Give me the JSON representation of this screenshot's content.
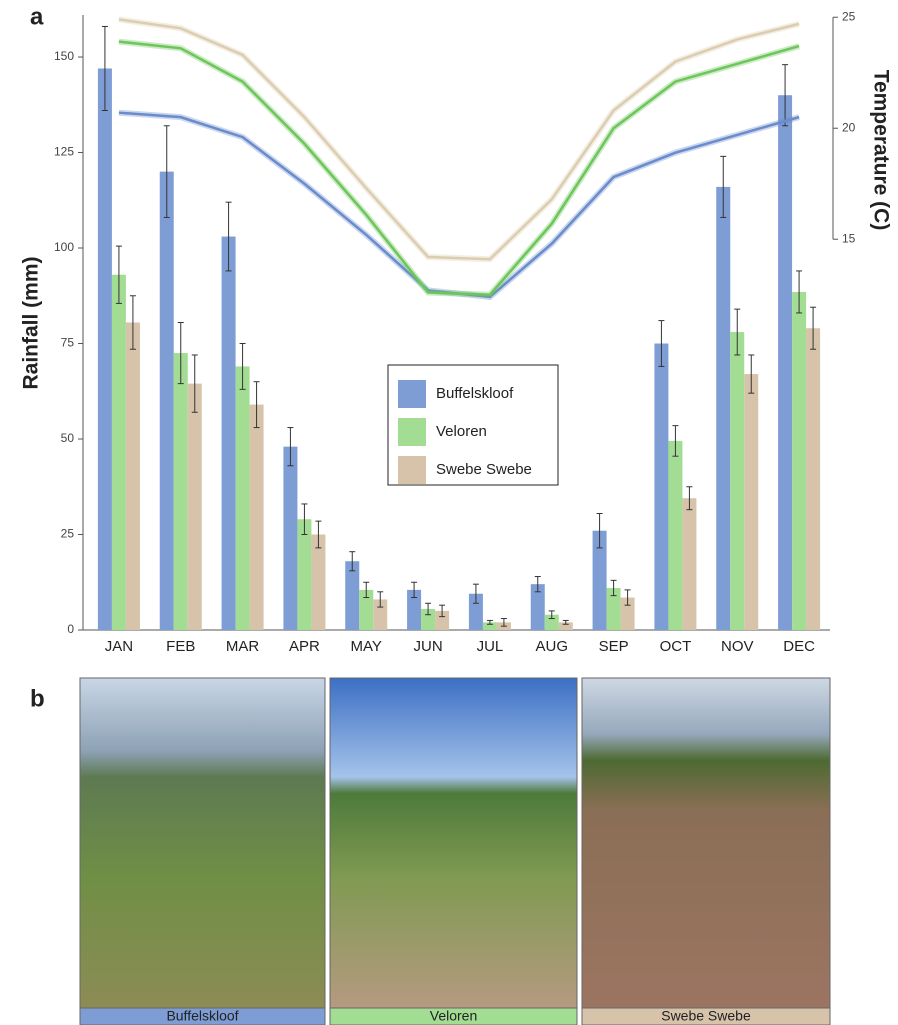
{
  "chart_data": {
    "type": "bar",
    "panel_label": "a",
    "ylabel": "Rainfall (mm)",
    "y2label": "Temperature (C)",
    "categories": [
      "JAN",
      "FEB",
      "MAR",
      "APR",
      "MAY",
      "JUN",
      "JUL",
      "AUG",
      "SEP",
      "OCT",
      "NOV",
      "DEC"
    ],
    "series": [
      {
        "name": "Buffelskloof",
        "color": "#7d9dd4",
        "values": [
          147,
          120,
          103,
          48,
          18,
          10.5,
          9.5,
          12,
          26,
          75,
          116,
          140
        ],
        "errors": [
          11,
          12,
          9,
          5,
          2.5,
          2,
          2.5,
          2,
          4.5,
          6,
          8,
          8
        ]
      },
      {
        "name": "Veloren",
        "color": "#a3dd93",
        "values": [
          93,
          72.5,
          69,
          29,
          10.5,
          5.5,
          2,
          4,
          11,
          49.5,
          78,
          88.5
        ],
        "errors": [
          7.5,
          8,
          6,
          4,
          2,
          1.5,
          0.5,
          1,
          2,
          4,
          6,
          5.5
        ]
      },
      {
        "name": "Swebe Swebe",
        "color": "#d6c3aa",
        "values": [
          80.5,
          64.5,
          59,
          25,
          8,
          5,
          2,
          2,
          8.5,
          34.5,
          67,
          79
        ],
        "errors": [
          7,
          7.5,
          6,
          3.5,
          2,
          1.5,
          1,
          0.5,
          2,
          3,
          5,
          5.5
        ]
      }
    ],
    "lines": [
      {
        "type": "line",
        "axis": "y2",
        "color": "#6a8bcc",
        "values": [
          20.7,
          20.5,
          19.6,
          17.5,
          15.2,
          12.7,
          12.4,
          14.8,
          17.8,
          18.9,
          19.7,
          20.5
        ]
      },
      {
        "type": "line",
        "axis": "y2",
        "color": "#6cc65a",
        "values": [
          23.9,
          23.6,
          22.1,
          19.3,
          16.1,
          12.6,
          12.5,
          15.7,
          20.0,
          22.1,
          22.9,
          23.7
        ]
      },
      {
        "type": "line",
        "axis": "y2",
        "color": "#dccdb0",
        "values": [
          24.9,
          24.5,
          23.3,
          20.5,
          17.3,
          14.2,
          14.1,
          16.8,
          20.8,
          23.0,
          24.0,
          24.7
        ]
      }
    ],
    "ylim": [
      0,
      161
    ],
    "yticks": [
      0,
      25,
      50,
      75,
      100,
      125,
      150
    ],
    "y2lim": [
      -2.6,
      25.1
    ],
    "y2ticks": [
      15,
      20,
      25
    ],
    "legend": "center"
  },
  "photos": {
    "panel_label": "b",
    "captions": [
      "Buffelskloof",
      "Veloren",
      "Swebe Swebe"
    ]
  }
}
